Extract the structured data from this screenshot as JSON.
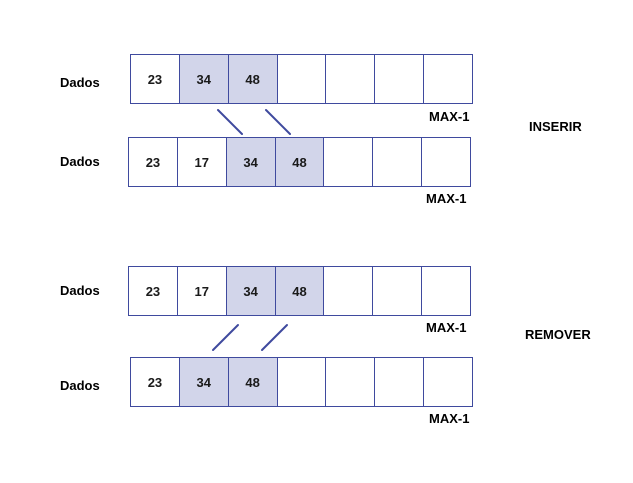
{
  "colors": {
    "border": "#3f4a9e",
    "highlight_fill": "#d2d5ea",
    "connector": "#3f4a9e"
  },
  "operations": {
    "insert": "INSERIR",
    "remove": "REMOVER"
  },
  "arrays": [
    {
      "row_label": "Dados",
      "cells": [
        "23",
        "34",
        "48",
        "",
        "",
        "",
        ""
      ],
      "highlighted": [
        1,
        2
      ],
      "end_label": "MAX-1"
    },
    {
      "row_label": "Dados",
      "cells": [
        "23",
        "17",
        "34",
        "48",
        "",
        "",
        ""
      ],
      "highlighted": [
        2,
        3
      ],
      "end_label": "MAX-1"
    },
    {
      "row_label": "Dados",
      "cells": [
        "23",
        "17",
        "34",
        "48",
        "",
        "",
        ""
      ],
      "highlighted": [
        2,
        3
      ],
      "end_label": "MAX-1"
    },
    {
      "row_label": "Dados",
      "cells": [
        "23",
        "34",
        "48",
        "",
        "",
        "",
        ""
      ],
      "highlighted": [
        1,
        2
      ],
      "end_label": "MAX-1"
    }
  ]
}
